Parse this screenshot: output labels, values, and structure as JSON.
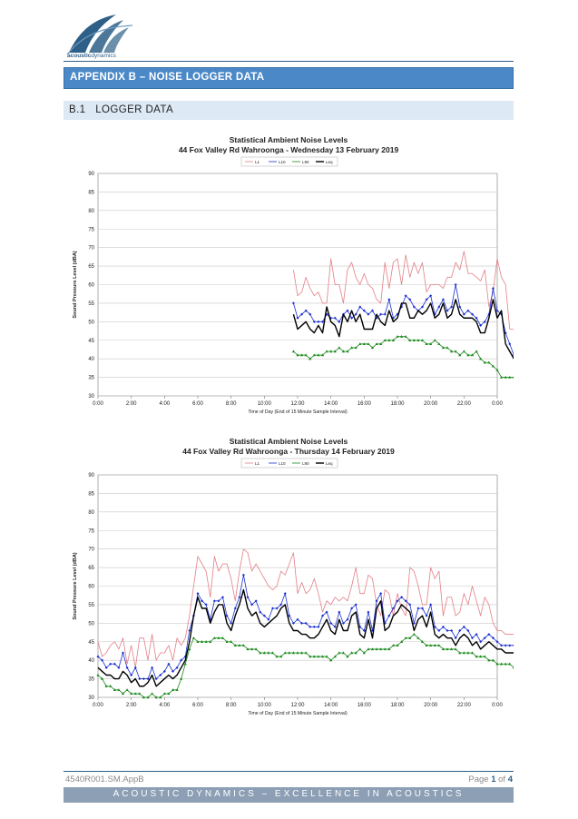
{
  "header": {
    "logo_text_1": "acoustic",
    "logo_text_2": "dynamics",
    "appendix_title": "APPENDIX B – NOISE LOGGER DATA",
    "section_number": "B.1",
    "section_title": "LOGGER DATA"
  },
  "footer": {
    "doc_ref": "4540R001.SM.AppB",
    "page_prefix": "Page",
    "page_current": "1",
    "page_of": "of",
    "page_total": "4",
    "tagline": "ACOUSTIC DYNAMICS – EXCELLENCE IN ACOUSTICS"
  },
  "colors": {
    "L1": "#e37f86",
    "L10": "#1a2fd0",
    "L90": "#1c8a1c",
    "Leq": "#000000",
    "brand": "#4a88c8"
  },
  "chart_data": [
    {
      "type": "line",
      "title": "Statistical Ambient Noise Levels",
      "subtitle": "44 Fox Valley Rd Wahroonga - Wednesday 13 February 2019",
      "xlabel": "Time of Day (End of 15 Minute Sample Interval)",
      "ylabel": "Sound Pressure Level (dBA)",
      "ylim": [
        30,
        90
      ],
      "yticks": [
        30,
        35,
        40,
        45,
        50,
        55,
        60,
        65,
        70,
        75,
        80,
        85,
        90
      ],
      "xticks": [
        "0:00",
        "2:00",
        "4:00",
        "6:00",
        "8:00",
        "10:00",
        "12:00",
        "14:00",
        "16:00",
        "18:00",
        "20:00",
        "22:00",
        "0:00"
      ],
      "grid": true,
      "legend_position": "top",
      "x_start": 47,
      "series": [
        {
          "name": "L1",
          "values": [
            64,
            57,
            58,
            62,
            59,
            57,
            58,
            55,
            55,
            67,
            60,
            60,
            55,
            64,
            66,
            62,
            60,
            63,
            60,
            59,
            56,
            55,
            66,
            59,
            66,
            67,
            60,
            68,
            62,
            66,
            63,
            66,
            58,
            60,
            60,
            60,
            59,
            62,
            62,
            66,
            64,
            69,
            63,
            63,
            62,
            61,
            64,
            54,
            58,
            67,
            62,
            60,
            48,
            48,
            47,
            44
          ]
        },
        {
          "name": "L10",
          "values": [
            55,
            51,
            52,
            53,
            52,
            50,
            50,
            50,
            52,
            51,
            51,
            50,
            52,
            53,
            51,
            52,
            54,
            53,
            52,
            53,
            51,
            52,
            52,
            56,
            51,
            52,
            54,
            57,
            56,
            54,
            53,
            54,
            56,
            57,
            52,
            54,
            56,
            53,
            54,
            60,
            54,
            52,
            53,
            52,
            51,
            49,
            50,
            52,
            59,
            53,
            52,
            47,
            44,
            41,
            40,
            40
          ]
        },
        {
          "name": "L90",
          "values": [
            42,
            41,
            41,
            41,
            40,
            41,
            41,
            41,
            42,
            42,
            42,
            43,
            42,
            42,
            43,
            43,
            44,
            44,
            44,
            43,
            44,
            44,
            45,
            45,
            45,
            46,
            46,
            46,
            45,
            45,
            45,
            45,
            44,
            44,
            45,
            44,
            43,
            43,
            42,
            42,
            41,
            42,
            41,
            41,
            42,
            40,
            39,
            39,
            38,
            37,
            35,
            35,
            35,
            35,
            35,
            35
          ]
        },
        {
          "name": "Leq",
          "values": [
            52,
            48,
            49,
            50,
            48,
            47,
            49,
            47,
            54,
            50,
            49,
            46,
            52,
            50,
            53,
            50,
            52,
            48,
            48,
            48,
            52,
            50,
            49,
            53,
            50,
            51,
            55,
            55,
            51,
            51,
            53,
            52,
            53,
            55,
            51,
            52,
            55,
            51,
            52,
            56,
            52,
            51,
            51,
            51,
            50,
            47,
            47,
            51,
            56,
            51,
            53,
            44,
            42,
            40,
            39,
            39
          ]
        }
      ]
    },
    {
      "type": "line",
      "title": "Statistical Ambient Noise Levels",
      "subtitle": "44 Fox Valley Rd Wahroonga - Thursday 14 February 2019",
      "xlabel": "Time of Day (End of 15 Minute Sample Interval)",
      "ylabel": "Sound Pressure Level (dBA)",
      "ylim": [
        30,
        90
      ],
      "yticks": [
        30,
        35,
        40,
        45,
        50,
        55,
        60,
        65,
        70,
        75,
        80,
        85,
        90
      ],
      "xticks": [
        "0:00",
        "2:00",
        "4:00",
        "6:00",
        "8:00",
        "10:00",
        "12:00",
        "14:00",
        "16:00",
        "18:00",
        "20:00",
        "22:00",
        "0:00"
      ],
      "grid": true,
      "legend_position": "top",
      "x_start": 0,
      "series": [
        {
          "name": "L1",
          "values": [
            45,
            41,
            42,
            44,
            45,
            43,
            46,
            39,
            44,
            38,
            46,
            46,
            40,
            47,
            40,
            42,
            42,
            44,
            40,
            46,
            44,
            46,
            52,
            60,
            68,
            66,
            64,
            57,
            68,
            64,
            66,
            66,
            62,
            56,
            64,
            70,
            69,
            64,
            66,
            64,
            62,
            60,
            59,
            60,
            64,
            63,
            66,
            69,
            58,
            61,
            58,
            59,
            62,
            58,
            53,
            56,
            55,
            57,
            56,
            57,
            56,
            60,
            65,
            58,
            58,
            63,
            62,
            55,
            52,
            59,
            58,
            52,
            58,
            54,
            52,
            65,
            64,
            60,
            55,
            55,
            65,
            62,
            64,
            52,
            57,
            57,
            52,
            53,
            58,
            55,
            60,
            56,
            52,
            57,
            55,
            50,
            48,
            48,
            47,
            47,
            47,
            46,
            46,
            44,
            46,
            51
          ]
        },
        {
          "name": "L10",
          "values": [
            41,
            40,
            38,
            39,
            39,
            38,
            42,
            38,
            36,
            38,
            35,
            35,
            35,
            38,
            35,
            36,
            37,
            39,
            37,
            38,
            40,
            41,
            48,
            52,
            58,
            56,
            55,
            51,
            56,
            56,
            57,
            52,
            50,
            54,
            57,
            63,
            57,
            55,
            56,
            53,
            52,
            51,
            54,
            54,
            55,
            58,
            52,
            50,
            51,
            50,
            50,
            49,
            49,
            49,
            52,
            53,
            50,
            49,
            53,
            50,
            51,
            54,
            55,
            49,
            48,
            53,
            48,
            56,
            58,
            50,
            52,
            54,
            56,
            57,
            56,
            55,
            50,
            54,
            54,
            52,
            55,
            49,
            48,
            49,
            48,
            48,
            46,
            48,
            49,
            48,
            46,
            47,
            45,
            46,
            47,
            46,
            45,
            44,
            44,
            44,
            44,
            44,
            44,
            43,
            43,
            43
          ]
        },
        {
          "name": "L90",
          "values": [
            36,
            35,
            33,
            33,
            32,
            32,
            31,
            32,
            31,
            31,
            31,
            30,
            30,
            31,
            30,
            30,
            31,
            31,
            32,
            32,
            35,
            39,
            43,
            46,
            45,
            45,
            45,
            45,
            46,
            46,
            46,
            45,
            45,
            44,
            44,
            44,
            43,
            43,
            43,
            42,
            42,
            42,
            42,
            41,
            41,
            42,
            42,
            42,
            42,
            42,
            42,
            41,
            41,
            41,
            41,
            41,
            40,
            41,
            42,
            42,
            41,
            42,
            42,
            43,
            42,
            43,
            43,
            43,
            43,
            43,
            43,
            44,
            44,
            45,
            46,
            46,
            47,
            46,
            45,
            44,
            44,
            44,
            44,
            43,
            43,
            43,
            43,
            42,
            42,
            42,
            42,
            41,
            41,
            41,
            40,
            40,
            39,
            39,
            39,
            39,
            38,
            38,
            38,
            38,
            38,
            38
          ]
        },
        {
          "name": "Leq",
          "values": [
            38,
            37,
            36,
            36,
            35,
            35,
            37,
            36,
            34,
            35,
            33,
            33,
            34,
            36,
            33,
            34,
            35,
            36,
            35,
            36,
            38,
            40,
            45,
            52,
            57,
            54,
            54,
            50,
            53,
            55,
            55,
            50,
            48,
            52,
            55,
            59,
            54,
            52,
            53,
            50,
            49,
            50,
            51,
            52,
            54,
            55,
            50,
            48,
            48,
            47,
            47,
            46,
            46,
            47,
            49,
            51,
            48,
            47,
            51,
            48,
            48,
            52,
            53,
            47,
            46,
            51,
            46,
            54,
            56,
            48,
            49,
            52,
            53,
            55,
            54,
            53,
            48,
            51,
            52,
            49,
            53,
            47,
            46,
            47,
            46,
            46,
            44,
            46,
            47,
            46,
            44,
            45,
            43,
            44,
            45,
            44,
            43,
            43,
            42,
            42,
            42,
            42,
            42,
            41,
            41,
            41
          ]
        }
      ]
    }
  ]
}
